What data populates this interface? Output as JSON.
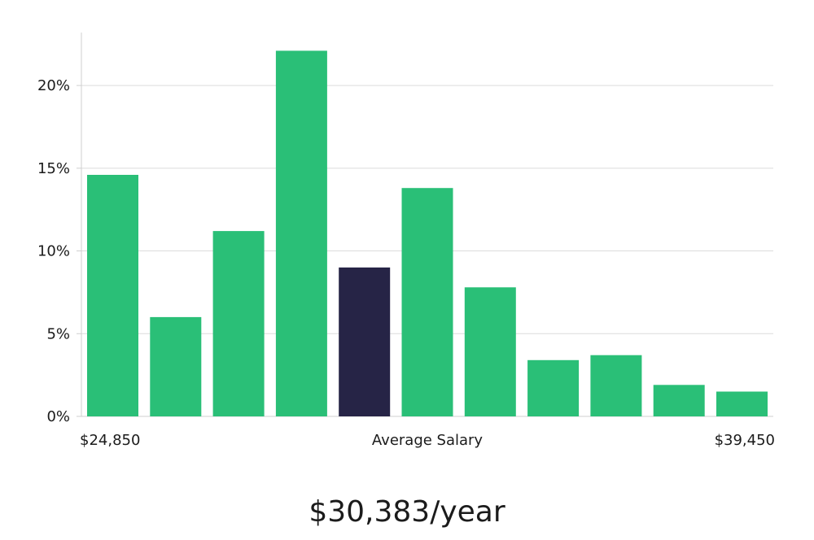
{
  "chart_data": {
    "type": "bar",
    "title": "",
    "xlabel": "",
    "ylabel": "",
    "x_tick_labels": {
      "left": "$24,850",
      "center": "Average Salary",
      "right": "$39,450"
    },
    "y_ticks": [
      0,
      5,
      10,
      15,
      20
    ],
    "y_tick_labels": [
      "0%",
      "5%",
      "10%",
      "15%",
      "20%"
    ],
    "ylim": [
      0,
      23.2
    ],
    "grid": true,
    "values": [
      14.6,
      6.0,
      11.2,
      22.1,
      9.0,
      13.8,
      7.8,
      3.4,
      3.7,
      1.9,
      1.5
    ],
    "highlight_index": 4,
    "colors": {
      "bar": "#2abf77",
      "highlight": "#262446",
      "grid": "#dcdcdc",
      "axis": "#cfcfcf"
    }
  },
  "summary": {
    "salary": "$30,383/year"
  }
}
